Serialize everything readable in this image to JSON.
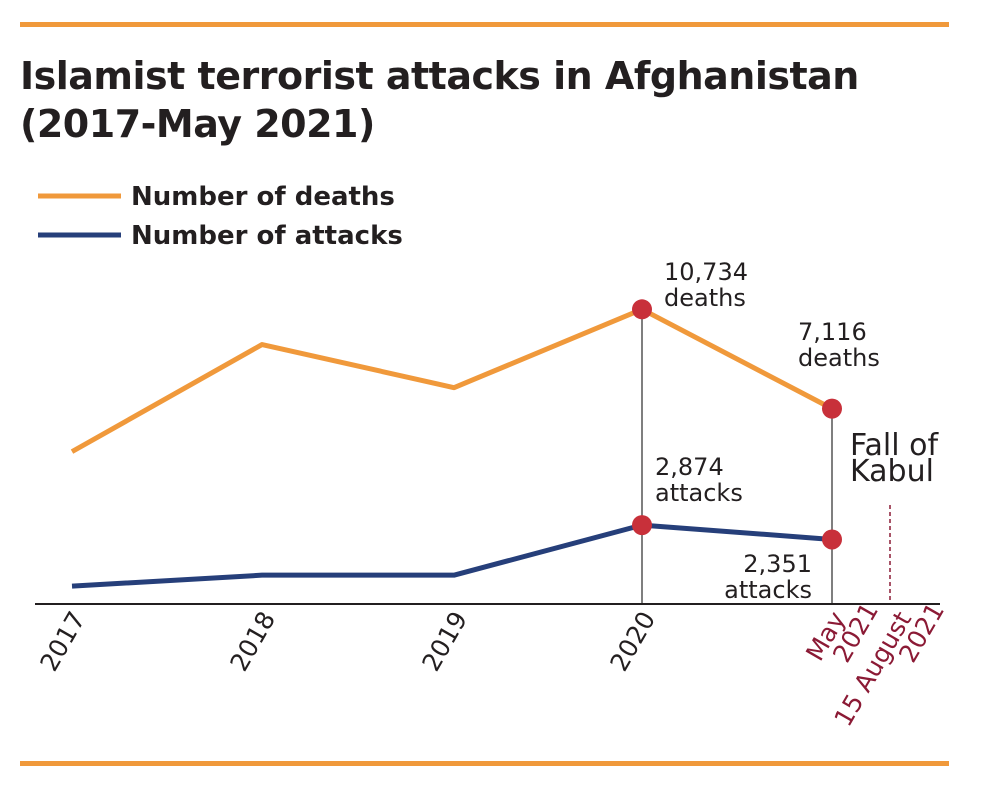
{
  "chart_data": {
    "type": "line",
    "title": "Islamist terrorist attacks in Afghanistan (2017-May 2021)",
    "categories": [
      "2017",
      "2018",
      "2019",
      "2020",
      "May 2021"
    ],
    "series": [
      {
        "name": "Number of deaths",
        "color": "#F0993B",
        "values": [
          5550,
          9450,
          7880,
          10734,
          7116
        ]
      },
      {
        "name": "Number of attacks",
        "color": "#263F7A",
        "values": [
          650,
          1050,
          1050,
          2874,
          2351
        ]
      }
    ],
    "ylim": [
      0,
      11000
    ],
    "grid": false,
    "legend_placement": "top-left",
    "highlight_color": "#C8303A",
    "annotation_color": "#8B1A35",
    "accent_rule_color": "#F0993B",
    "tick_labels": [
      {
        "lines": [
          "2017"
        ],
        "highlight": false
      },
      {
        "lines": [
          "2018"
        ],
        "highlight": false
      },
      {
        "lines": [
          "2019"
        ],
        "highlight": false
      },
      {
        "lines": [
          "2020"
        ],
        "highlight": false
      },
      {
        "lines": [
          "May",
          "2021"
        ],
        "highlight": true
      }
    ],
    "annotations": {
      "deaths_2020": [
        "10,734",
        "deaths"
      ],
      "deaths_may2021": [
        "7,116",
        "deaths"
      ],
      "attacks_2020": [
        "2,874",
        "attacks"
      ],
      "attacks_may2021": [
        "2,351",
        "attacks"
      ],
      "event_label": [
        "Fall of",
        "Kabul"
      ],
      "event_date": [
        "15 August",
        "2021"
      ]
    }
  }
}
